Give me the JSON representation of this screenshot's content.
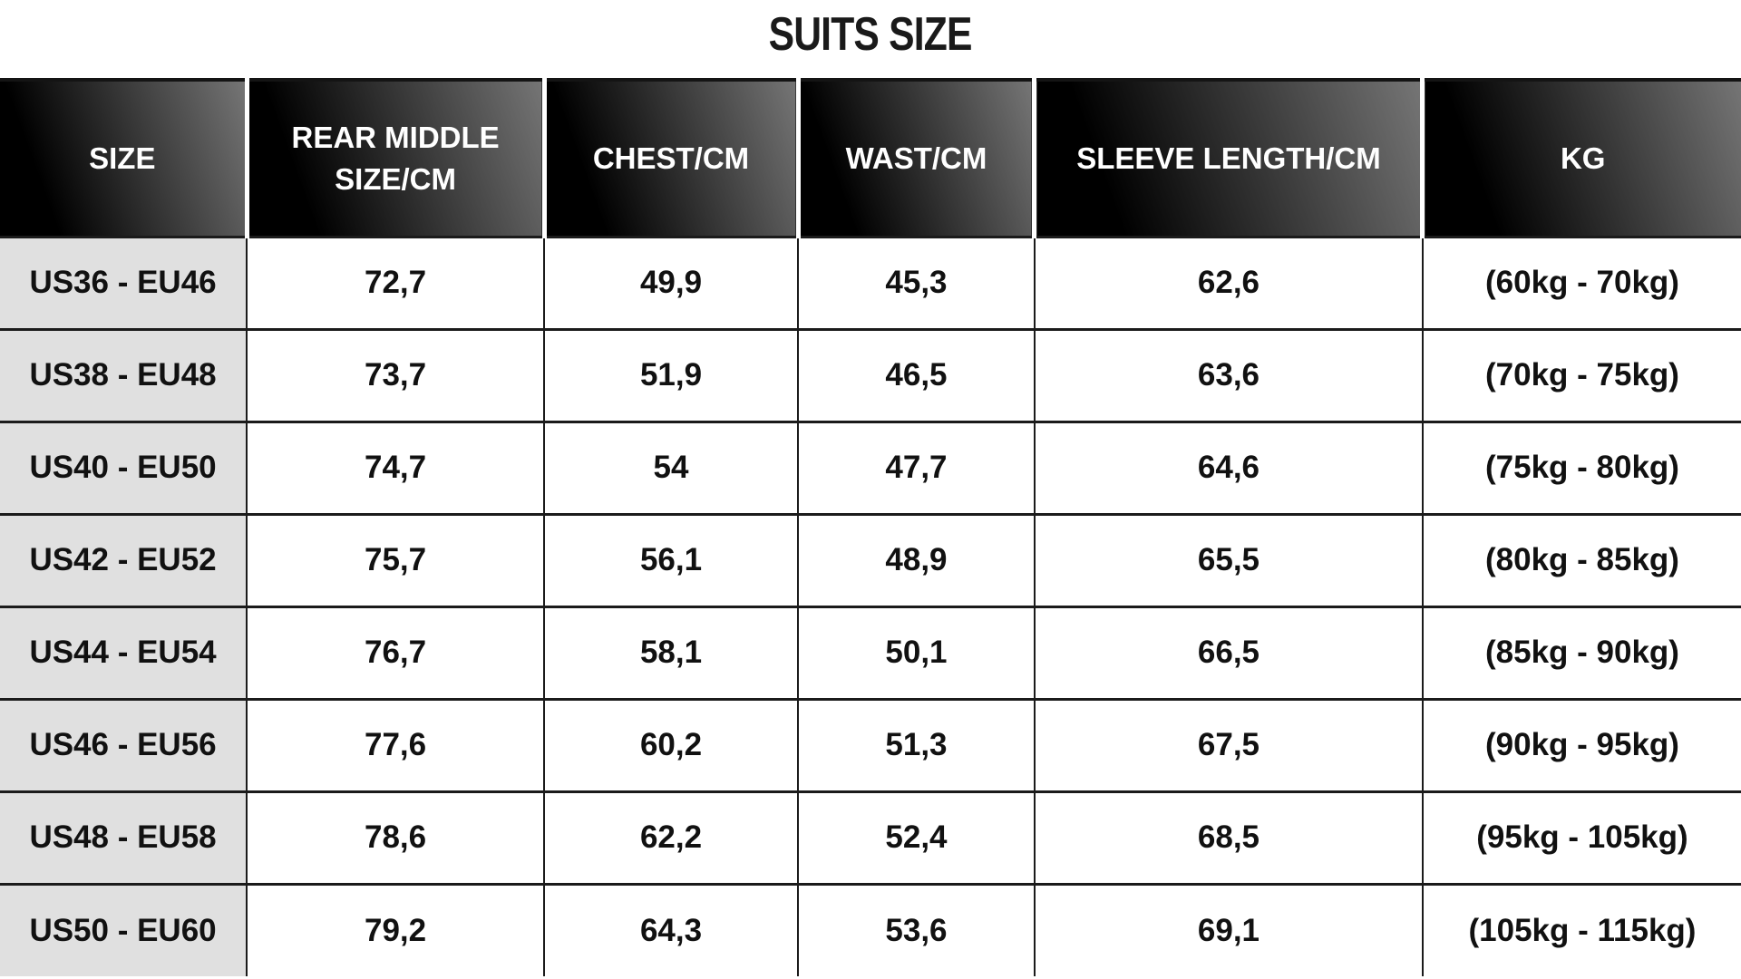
{
  "page": {
    "title": "SUITS SIZE"
  },
  "colors": {
    "header_grad_start": "#000000",
    "header_grad_end": "#757575",
    "header_text": "#ffffff",
    "size_col_bg": "#e0e0e0",
    "border_color": "#1b1b1b",
    "body_text": "#111111"
  },
  "chart_data": {
    "type": "table",
    "title": "SUITS SIZE",
    "columns": [
      {
        "key": "size",
        "label": "SIZE"
      },
      {
        "key": "rear_middle_size_cm",
        "label": "REAR MIDDLE SIZE/CM"
      },
      {
        "key": "chest_cm",
        "label": "CHEST/CM"
      },
      {
        "key": "wast_cm",
        "label": "WAST/CM"
      },
      {
        "key": "sleeve_length_cm",
        "label": "SLEEVE LENGTH/CM"
      },
      {
        "key": "kg",
        "label": "KG"
      }
    ],
    "rows": [
      [
        "US36 - EU46",
        "72,7",
        "49,9",
        "45,3",
        "62,6",
        "(60kg - 70kg)"
      ],
      [
        "US38 - EU48",
        "73,7",
        "51,9",
        "46,5",
        "63,6",
        "(70kg - 75kg)"
      ],
      [
        "US40 - EU50",
        "74,7",
        "54",
        "47,7",
        "64,6",
        "(75kg - 80kg)"
      ],
      [
        "US42 - EU52",
        "75,7",
        "56,1",
        "48,9",
        "65,5",
        "(80kg - 85kg)"
      ],
      [
        "US44 - EU54",
        "76,7",
        "58,1",
        "50,1",
        "66,5",
        "(85kg - 90kg)"
      ],
      [
        "US46 - EU56",
        "77,6",
        "60,2",
        "51,3",
        "67,5",
        "(90kg - 95kg)"
      ],
      [
        "US48 - EU58",
        "78,6",
        "62,2",
        "52,4",
        "68,5",
        "(95kg - 105kg)"
      ],
      [
        "US50 - EU60",
        "79,2",
        "64,3",
        "53,6",
        "69,1",
        "(105kg - 115kg)"
      ]
    ]
  }
}
